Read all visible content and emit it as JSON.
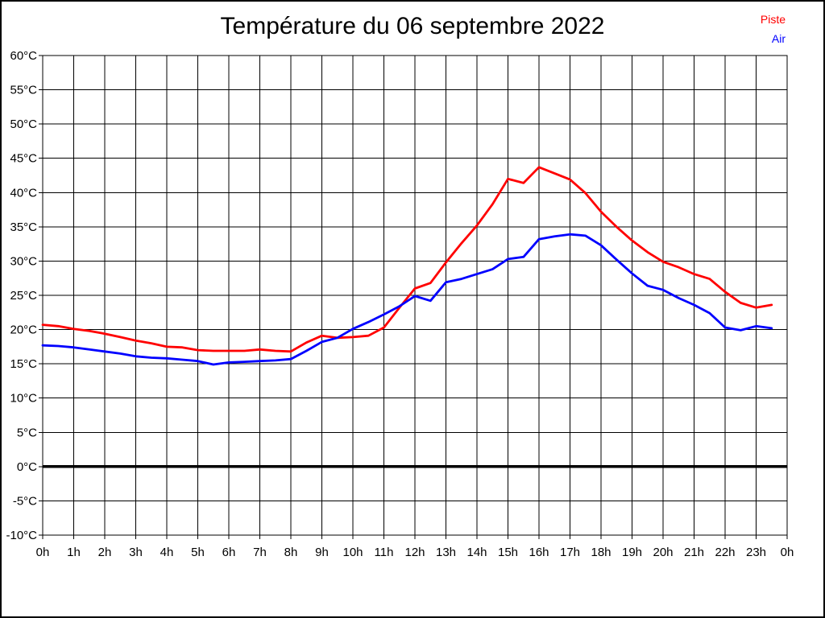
{
  "page": {
    "title": "Température du 06 septembre 2022"
  },
  "legend": [
    {
      "label": "Piste",
      "color": "#ff0000"
    },
    {
      "label": "Air",
      "color": "#0000ff"
    }
  ],
  "chart_data": {
    "type": "line",
    "title": "Température du 06 septembre 2022",
    "xlabel": "",
    "ylabel": "",
    "xlim": [
      0,
      24
    ],
    "ylim": [
      -10,
      60
    ],
    "y_step": 5,
    "grid": true,
    "legend_position": "top-right",
    "zero_line": {
      "value": 0,
      "width": 3.5
    },
    "x_unit": "hours",
    "xlabel_ticks": [
      "0h",
      "1h",
      "2h",
      "3h",
      "4h",
      "5h",
      "6h",
      "7h",
      "8h",
      "9h",
      "10h",
      "11h",
      "12h",
      "13h",
      "14h",
      "15h",
      "16h",
      "17h",
      "18h",
      "19h",
      "20h",
      "21h",
      "22h",
      "23h",
      "0h"
    ],
    "ylabel_ticks": [
      "60°C",
      "55°C",
      "50°C",
      "45°C",
      "40°C",
      "35°C",
      "30°C",
      "25°C",
      "20°C",
      "15°C",
      "10°C",
      "5°C",
      "0°C",
      "-5°C",
      "-10°C"
    ],
    "x": [
      0,
      0.5,
      1,
      1.5,
      2,
      2.5,
      3,
      3.5,
      4,
      4.5,
      5,
      5.5,
      6,
      6.5,
      7,
      7.5,
      8,
      8.5,
      9,
      9.5,
      10,
      10.5,
      11,
      11.5,
      12,
      12.5,
      13,
      13.5,
      14,
      14.5,
      15,
      15.5,
      16,
      16.5,
      17,
      17.5,
      18,
      18.5,
      19,
      19.5,
      20,
      20.5,
      21,
      21.5,
      22,
      22.5,
      23,
      23.5
    ],
    "series": [
      {
        "name": "Piste",
        "color": "#ff0000",
        "values": [
          20.7,
          20.5,
          20.1,
          19.8,
          19.4,
          18.9,
          18.4,
          18.0,
          17.5,
          17.4,
          17.0,
          16.9,
          16.9,
          16.9,
          17.1,
          16.9,
          16.8,
          18.1,
          19.1,
          18.8,
          18.9,
          19.1,
          20.3,
          23.2,
          26.0,
          26.8,
          29.8,
          32.6,
          35.2,
          38.3,
          42.0,
          41.4,
          43.7,
          42.8,
          41.9,
          39.9,
          37.2,
          35.0,
          33.0,
          31.3,
          29.9,
          29.1,
          28.1,
          27.4,
          25.5,
          23.9,
          23.2,
          23.6
        ]
      },
      {
        "name": "Air",
        "color": "#0000ff",
        "values": [
          17.7,
          17.6,
          17.4,
          17.1,
          16.8,
          16.5,
          16.1,
          15.9,
          15.8,
          15.6,
          15.4,
          14.9,
          15.2,
          15.3,
          15.4,
          15.5,
          15.7,
          16.9,
          18.2,
          18.8,
          20.1,
          21.1,
          22.2,
          23.4,
          24.9,
          24.2,
          26.9,
          27.4,
          28.1,
          28.8,
          30.3,
          30.6,
          33.2,
          33.6,
          33.9,
          33.7,
          32.3,
          30.2,
          28.2,
          26.4,
          25.8,
          24.6,
          23.6,
          22.4,
          20.3,
          19.9,
          20.5,
          20.2
        ]
      }
    ]
  }
}
